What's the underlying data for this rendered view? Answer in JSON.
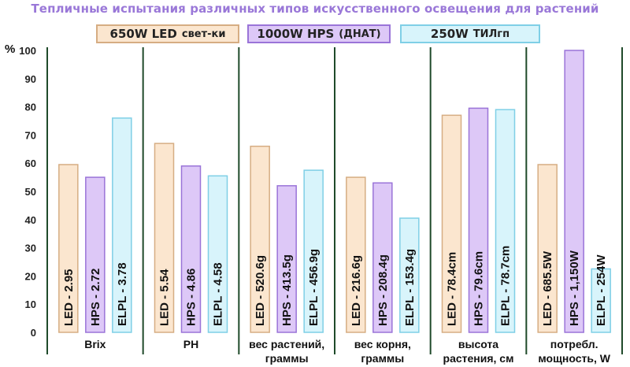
{
  "title": "Тепличные испытания различных типов искусственного освещения для растений",
  "legend": [
    {
      "power": "650W LED",
      "label": "свет-ки",
      "fill": "#fbe6cf",
      "border": "#d6ad83"
    },
    {
      "power": "1000W HPS",
      "label": "(ДНАТ)",
      "fill": "#ddc8f7",
      "border": "#9a74d8"
    },
    {
      "power": "250W",
      "label": "ТИЛгп",
      "fill": "#d8f4fb",
      "border": "#7fcfe6"
    }
  ],
  "chart_data": {
    "type": "bar",
    "ylabel": "%",
    "ylim": [
      0,
      100
    ],
    "yticks": [
      0,
      10,
      20,
      30,
      40,
      50,
      60,
      70,
      80,
      90,
      100
    ],
    "categories": [
      "Brix",
      "PH",
      "вес растений, граммы",
      "вес корня, граммы",
      "высота растения, см",
      "потребл. мощность, W"
    ],
    "category_lines": [
      [
        "Brix"
      ],
      [
        "PH"
      ],
      [
        "вес растений,",
        "граммы"
      ],
      [
        "вес корня,",
        "граммы"
      ],
      [
        "высота",
        "растения, см"
      ],
      [
        "потребл.",
        "мощность, W"
      ]
    ],
    "series": [
      {
        "name": "650W LED свет-ки",
        "color": "#fbe6cf",
        "border": "#d6ad83",
        "values": [
          59.5,
          67,
          66,
          55,
          77,
          59.5
        ],
        "labels": [
          "LED - 2.95",
          "LED - 5.54",
          "LED - 520.6g",
          "LED - 216.6g",
          "LED - 78.4cm",
          "LED - 685.5W"
        ]
      },
      {
        "name": "1000W HPS (ДНАТ)",
        "color": "#ddc8f7",
        "border": "#9a74d8",
        "values": [
          55,
          59,
          52,
          53,
          79.5,
          100
        ],
        "labels": [
          "HPS - 2.72",
          "HPS - 4.86",
          "HPS - 413.5g",
          "HPS - 208.4g",
          "HPS - 79.6cm",
          "HPS - 1,150W"
        ]
      },
      {
        "name": "250W ТИЛгп",
        "color": "#d8f4fb",
        "border": "#7fcfe6",
        "values": [
          76,
          55.5,
          57.5,
          40.5,
          79,
          22.5
        ],
        "labels": [
          "ELPL - 3.78",
          "ELPL - 4.58",
          "ELPL - 456.9g",
          "ELPL - 153.4g",
          "ELPL - 78.7cm",
          "ELPL - 254W"
        ]
      }
    ],
    "grid": false,
    "legend_position": "top"
  }
}
